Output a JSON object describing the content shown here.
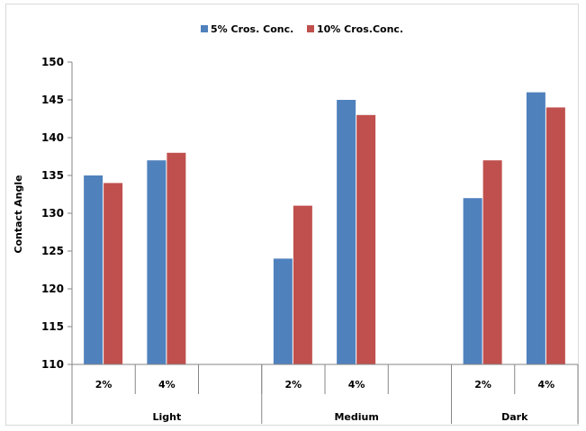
{
  "chart_data": {
    "type": "bar",
    "ylabel": "Contact Angle",
    "ylim": [
      110,
      150
    ],
    "yticks": [
      110,
      115,
      120,
      125,
      130,
      135,
      140,
      145,
      150
    ],
    "groups": [
      "Light",
      "Medium",
      "Dark"
    ],
    "categories": [
      "2%",
      "4%",
      "",
      "2%",
      "4%",
      "",
      "2%",
      "4%"
    ],
    "series": [
      {
        "name": "5% Cros. Conc.",
        "color": "#4f81bd",
        "values": [
          135,
          137,
          null,
          124,
          145,
          null,
          132,
          146
        ]
      },
      {
        "name": "10% Cros.Conc.",
        "color": "#c0504d",
        "values": [
          134,
          138,
          null,
          131,
          143,
          null,
          137,
          144
        ]
      }
    ],
    "legend_position": "top",
    "grid": false
  }
}
